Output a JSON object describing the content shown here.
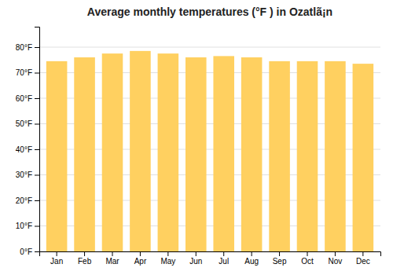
{
  "chart_data": {
    "type": "bar",
    "title": "Average monthly temperatures (°F ) in Ozatlã¡n",
    "categories": [
      "Jan",
      "Feb",
      "Mar",
      "Apr",
      "May",
      "Jun",
      "Jul",
      "Aug",
      "Sep",
      "Oct",
      "Nov",
      "Dec"
    ],
    "values": [
      74.5,
      76.0,
      77.5,
      78.5,
      77.5,
      76.0,
      76.5,
      76.0,
      74.5,
      74.5,
      74.5,
      73.5
    ],
    "color": "#FFD060",
    "ylim": [
      0,
      88
    ],
    "yticks": [
      {
        "value": 0,
        "label": "0°F"
      },
      {
        "value": 10,
        "label": "10°F"
      },
      {
        "value": 20,
        "label": "20°F"
      },
      {
        "value": 30,
        "label": "30°F"
      },
      {
        "value": 40,
        "label": "40°F"
      },
      {
        "value": 50,
        "label": "50°F"
      },
      {
        "value": 60,
        "label": "60°F"
      },
      {
        "value": 70,
        "label": "70°F"
      },
      {
        "value": 80,
        "label": "80°F"
      }
    ],
    "grid": true
  }
}
